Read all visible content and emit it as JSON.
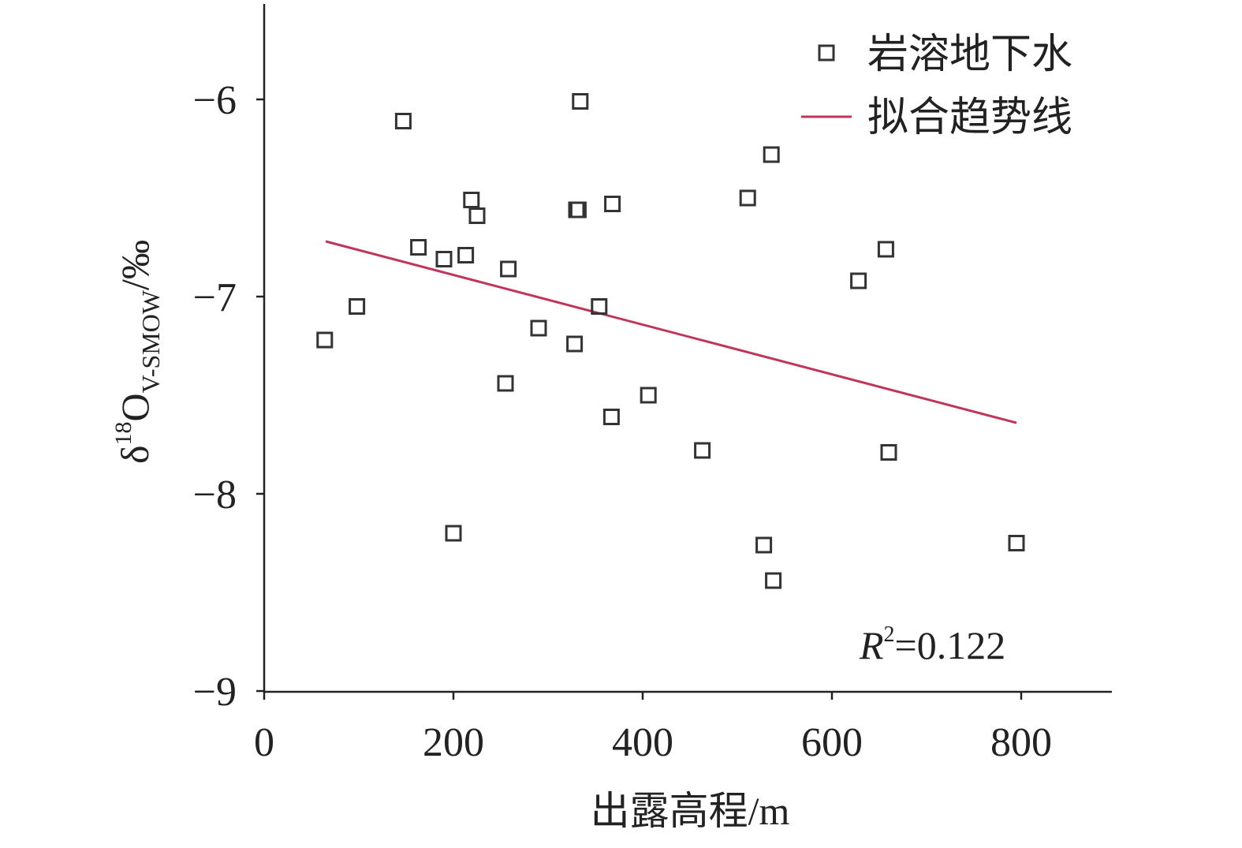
{
  "chart_data": {
    "type": "scatter",
    "xlabel": "出露高程/m",
    "ylabel": {
      "main": "δ",
      "sup": "18",
      "element": "O",
      "sub": "V-SMOW",
      "unit": "/‰"
    },
    "xlim": [
      0,
      900
    ],
    "ylim": [
      -9,
      -5.5
    ],
    "xticks": [
      0,
      200,
      400,
      600,
      800
    ],
    "yticks": [
      -6,
      -7,
      -8,
      -9
    ],
    "ytick_labels": [
      "−6",
      "−7",
      "−8",
      "−9"
    ],
    "grid": false,
    "legend_position": "top-right",
    "series": [
      {
        "name": "岩溶地下水",
        "marker": "open-square",
        "color": "#333333",
        "points": [
          [
            64,
            -7.22
          ],
          [
            98,
            -7.05
          ],
          [
            147,
            -6.11
          ],
          [
            163,
            -6.75
          ],
          [
            190,
            -6.81
          ],
          [
            200,
            -8.2
          ],
          [
            213,
            -6.79
          ],
          [
            219,
            -6.51
          ],
          [
            225,
            -6.59
          ],
          [
            255,
            -7.44
          ],
          [
            258,
            -6.86
          ],
          [
            290,
            -7.16
          ],
          [
            328,
            -7.24
          ],
          [
            330,
            -6.56
          ],
          [
            332,
            -6.56
          ],
          [
            334,
            -6.01
          ],
          [
            354,
            -7.05
          ],
          [
            367,
            -7.61
          ],
          [
            368,
            -6.53
          ],
          [
            406,
            -7.5
          ],
          [
            463,
            -7.78
          ],
          [
            511,
            -6.5
          ],
          [
            528,
            -8.26
          ],
          [
            536,
            -6.28
          ],
          [
            538,
            -8.44
          ],
          [
            628,
            -6.92
          ],
          [
            657,
            -6.76
          ],
          [
            660,
            -7.79
          ],
          [
            795,
            -8.25
          ]
        ]
      },
      {
        "name": "拟合趋势线",
        "type": "line",
        "color": "#c0365a",
        "points": [
          [
            65,
            -6.72
          ],
          [
            795,
            -7.64
          ]
        ]
      }
    ],
    "annotation": {
      "italic": "R",
      "sup": "2",
      "text": "=0.122"
    }
  }
}
